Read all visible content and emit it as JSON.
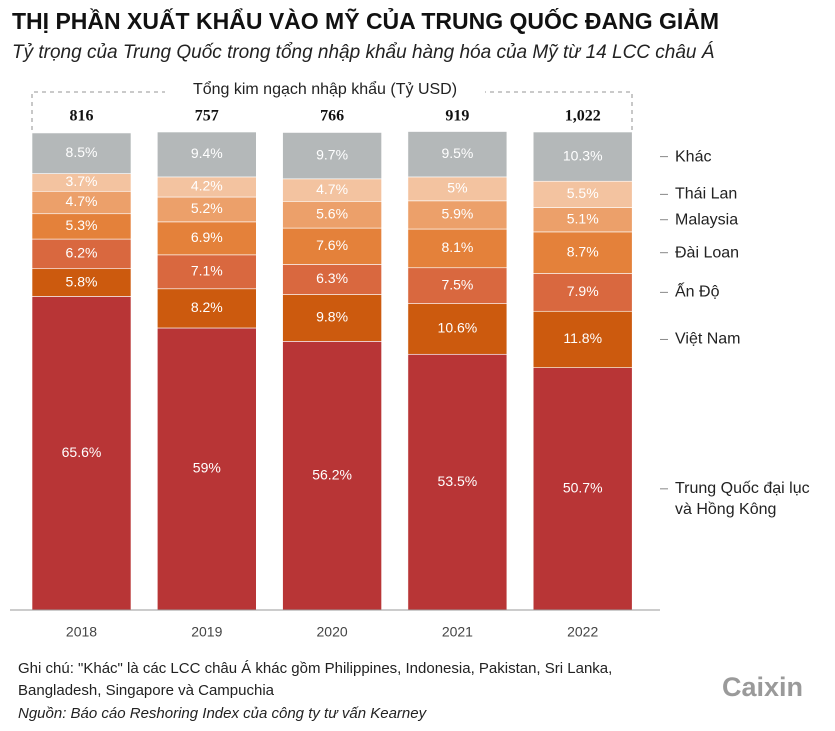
{
  "chart_data": {
    "type": "stacked_bar",
    "title": "THỊ PHẦN XUẤT KHẨU VÀO MỸ CỦA TRUNG QUỐC ĐANG GIẢM",
    "subtitle": "Tỷ trọng của Trung Quốc trong tổng nhập khẩu hàng hóa của Mỹ từ 14 LCC châu Á",
    "categories": [
      "2018",
      "2019",
      "2020",
      "2021",
      "2022"
    ],
    "ylim": [
      0,
      100
    ],
    "totals": {
      "label": "Tổng kim ngạch nhập khẩu (Tỷ USD)",
      "values": [
        816,
        757,
        766,
        919,
        1022
      ],
      "value_labels": [
        "816",
        "757",
        "766",
        "919",
        "1,022"
      ]
    },
    "series": [
      {
        "name": "Trung Quốc đại lục và Hồng Kông",
        "color": "#b83536",
        "values": [
          65.6,
          59,
          56.2,
          53.5,
          50.7
        ],
        "value_labels": [
          "65.6%",
          "59%",
          "56.2%",
          "53.5%",
          "50.7%"
        ]
      },
      {
        "name": "Việt Nam",
        "color": "#cc5a0e",
        "values": [
          5.8,
          8.2,
          9.8,
          10.6,
          11.8
        ],
        "value_labels": [
          "5.8%",
          "8.2%",
          "9.8%",
          "10.6%",
          "11.8%"
        ]
      },
      {
        "name": "Ấn Độ",
        "color": "#d9683f",
        "values": [
          6.2,
          7.1,
          6.3,
          7.5,
          7.9
        ],
        "value_labels": [
          "6.2%",
          "7.1%",
          "6.3%",
          "7.5%",
          "7.9%"
        ]
      },
      {
        "name": "Đài Loan",
        "color": "#e4813a",
        "values": [
          5.3,
          6.9,
          7.6,
          8.1,
          8.7
        ],
        "value_labels": [
          "5.3%",
          "6.9%",
          "7.6%",
          "8.1%",
          "8.7%"
        ]
      },
      {
        "name": "Malaysia",
        "color": "#eca06a",
        "values": [
          4.7,
          5.2,
          5.6,
          5.9,
          5.1
        ],
        "value_labels": [
          "4.7%",
          "5.2%",
          "5.6%",
          "5.9%",
          "5.1%"
        ]
      },
      {
        "name": "Thái Lan",
        "color": "#f3c3a0",
        "values": [
          3.7,
          4.2,
          4.7,
          5,
          5.5
        ],
        "value_labels": [
          "3.7%",
          "4.2%",
          "4.7%",
          "5%",
          "5.5%"
        ]
      },
      {
        "name": "Khác",
        "color": "#b4b8b9",
        "values": [
          8.5,
          9.4,
          9.7,
          9.5,
          10.3
        ],
        "value_labels": [
          "8.5%",
          "9.4%",
          "9.7%",
          "9.5%",
          "10.3%"
        ]
      }
    ],
    "note": "Ghi chú: \"Khác\" là các LCC châu Á khác gồm Philippines, Indonesia, Pakistan, Sri Lanka, Bangladesh, Singapore và Campuchia",
    "source": "Nguồn: Báo cáo Reshoring Index của công ty tư vấn Kearney",
    "logo": "Caixin"
  }
}
